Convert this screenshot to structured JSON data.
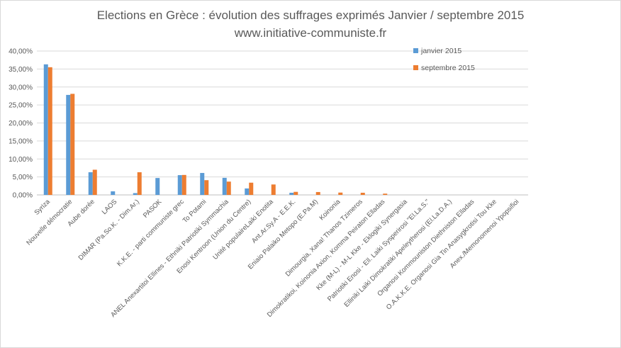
{
  "chart_data": {
    "type": "bar",
    "title": "Elections en Grèce : évolution des suffrages exprimés Janvier / septembre 2015",
    "subtitle": "www.initiative-communiste.fr",
    "xlabel": "",
    "ylabel": "",
    "ylim": [
      0,
      40
    ],
    "y_ticks": [
      "0,00%",
      "5,00%",
      "10,00%",
      "15,00%",
      "20,00%",
      "25,00%",
      "30,00%",
      "35,00%",
      "40,00%"
    ],
    "grid": true,
    "legend_position": "top-right",
    "categories": [
      "Syriza",
      "Nouvelle démocratie",
      "Aube dorée",
      "LAOS",
      "DIMAR (Pa.So.K. - Dim.Ar.)",
      "PASOK",
      "K.K.E. - parti communiste grec",
      "To Potami",
      "ANEL Anexartitoi Ellines - Ethniki Patriotiki Symmachia",
      "Enosi Kentroon (Union du Centre)",
      "Unité populaireLaiki Enotita",
      "Ant.Ar.Sy.A - E.E.K.",
      "Eniaio Palaiko Metopo (E.Pa.M)",
      "Koinonia",
      "Dimourgia, Xana! Thanos Tzimeros",
      "Dimokratikoi, Koinonia Axion, Komma Peiraton Elladas",
      "Kke (M-L) - M-L Kke - Eklogiki Synergasia",
      "Patriotiki Enosi - Ell. Laiki Sysperirosi \"El.La.S.\"",
      "Elliniki Laiki Dimokratiki Apeleytherosi (El.La.D.A.)",
      "Organosi Kommouniston Diethniston Elladas",
      "O.A.K.K.E. Organosi Gia Tin Anasygkrotisi Tou Kke",
      "Anex./Memonomenoi Ypopsifioi"
    ],
    "series": [
      {
        "name": "janvier 2015",
        "color": "#5b9bd5",
        "values": [
          36.3,
          27.8,
          6.3,
          1.0,
          0.5,
          4.7,
          5.5,
          6.1,
          4.75,
          1.8,
          0,
          0.6,
          0,
          0,
          0,
          0,
          0,
          0,
          0,
          0,
          0,
          0
        ]
      },
      {
        "name": "septembre 2015",
        "color": "#ed7d31",
        "values": [
          35.5,
          28.1,
          7.0,
          0,
          6.3,
          0,
          5.55,
          4.1,
          3.7,
          3.4,
          2.9,
          0.85,
          0.8,
          0.65,
          0.6,
          0.35,
          0,
          0,
          0,
          0,
          0,
          0
        ]
      }
    ]
  }
}
